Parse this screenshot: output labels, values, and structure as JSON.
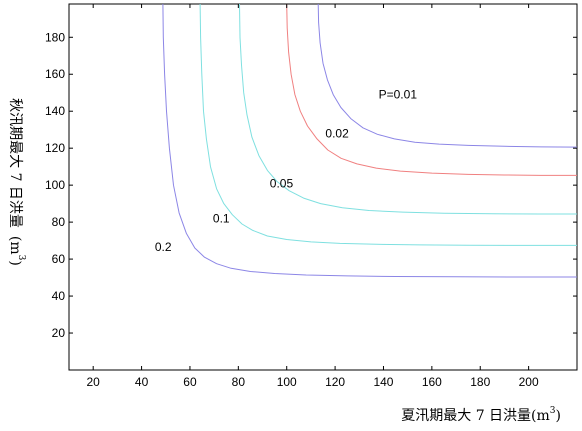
{
  "chart_data": {
    "type": "line",
    "title": "",
    "xlabel_main": "夏汛期最大 7 日洪量(m",
    "xlabel_sup": "3",
    "xlabel_tail": ")",
    "ylabel_main": "秋汛期最大 7 日洪量",
    "ylabel_unit_open": "(m",
    "ylabel_unit_sup": "3",
    "ylabel_unit_close": ")",
    "xlim": [
      10,
      220
    ],
    "ylim": [
      0,
      198
    ],
    "xticks": [
      20,
      40,
      60,
      80,
      100,
      120,
      140,
      160,
      180,
      200
    ],
    "yticks": [
      20,
      40,
      60,
      80,
      100,
      120,
      140,
      160,
      180
    ],
    "grid": false,
    "series": [
      {
        "color": "#8c86e6",
        "x": [
          48.8,
          49.0,
          49.5,
          50.3,
          51.5,
          53.2,
          55.5,
          58.5,
          62.0,
          66.0,
          71.0,
          77.0,
          85.0,
          95.0,
          108.0,
          125.0,
          145.0,
          170.0,
          200.0,
          220.0
        ],
        "y": [
          198.0,
          180.0,
          160.0,
          140.0,
          120.0,
          100.0,
          85.0,
          74.0,
          66.0,
          61.0,
          57.5,
          55.0,
          53.3,
          52.2,
          51.4,
          50.9,
          50.6,
          50.4,
          50.3,
          50.3
        ]
      },
      {
        "color": "#7fe0e0",
        "x": [
          64.2,
          64.4,
          64.9,
          65.6,
          66.8,
          68.5,
          71.0,
          74.0,
          77.5,
          81.5,
          86.0,
          92.0,
          100.0,
          110.0,
          122.0,
          137.0,
          155.0,
          175.0,
          200.0,
          220.0
        ],
        "y": [
          198.0,
          180.0,
          160.0,
          140.0,
          125.0,
          110.0,
          98.0,
          90.0,
          84.0,
          79.0,
          75.5,
          72.5,
          70.6,
          69.3,
          68.5,
          68.0,
          67.7,
          67.5,
          67.4,
          67.4
        ]
      },
      {
        "color": "#7fe0e0",
        "x": [
          80.5,
          80.7,
          81.3,
          82.2,
          83.6,
          85.6,
          88.5,
          92.0,
          96.0,
          101.0,
          107.0,
          114.0,
          123.0,
          134.0,
          148.0,
          165.0,
          185.0,
          205.0,
          220.0
        ],
        "y": [
          198.0,
          180.0,
          165.0,
          150.0,
          138.0,
          126.0,
          116.0,
          108.0,
          102.0,
          97.0,
          93.0,
          90.0,
          87.8,
          86.3,
          85.4,
          84.8,
          84.5,
          84.4,
          84.4
        ]
      },
      {
        "color": "#f08080",
        "x": [
          100.0,
          100.2,
          100.8,
          101.8,
          103.4,
          105.6,
          108.6,
          112.5,
          117.0,
          122.5,
          129.0,
          137.0,
          147.0,
          160.0,
          175.0,
          190.0,
          205.0,
          220.0
        ],
        "y": [
          198.0,
          185.0,
          172.0,
          160.0,
          149.0,
          140.0,
          132.0,
          125.0,
          119.0,
          114.5,
          111.5,
          109.2,
          107.6,
          106.5,
          105.8,
          105.5,
          105.3,
          105.3
        ]
      },
      {
        "color": "#8c86e6",
        "x": [
          113.0,
          113.2,
          113.8,
          115.0,
          116.8,
          119.2,
          122.4,
          126.5,
          131.5,
          137.5,
          144.5,
          153.0,
          163.0,
          175.0,
          190.0,
          205.0,
          220.0
        ],
        "y": [
          198.0,
          188.0,
          177.0,
          166.0,
          157.0,
          149.0,
          142.0,
          136.0,
          131.0,
          127.5,
          125.0,
          123.2,
          122.2,
          121.5,
          121.0,
          120.7,
          120.6
        ]
      }
    ],
    "annotations": [
      {
        "text": "0.2",
        "x": 45.5,
        "y": 66.5
      },
      {
        "text": "0.1",
        "x": 69.5,
        "y": 82.0
      },
      {
        "text": "0.05",
        "x": 93.0,
        "y": 101.0
      },
      {
        "text": "0.02",
        "x": 116.0,
        "y": 128.0
      },
      {
        "text": "P=0.01",
        "x": 138.0,
        "y": 149.0
      }
    ]
  }
}
